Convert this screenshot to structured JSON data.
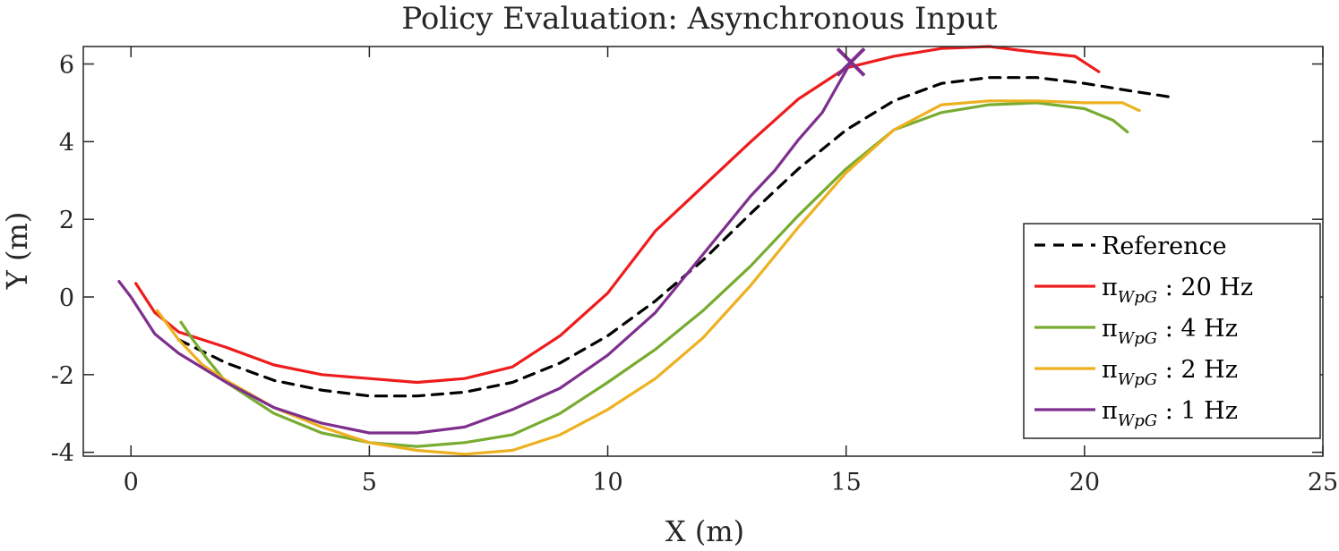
{
  "chart_data": {
    "type": "line",
    "title": "Policy Evaluation: Asynchronous Input",
    "xlabel": "X (m)",
    "ylabel": "Y (m)",
    "xlim": [
      -1,
      25
    ],
    "ylim": [
      -4.1,
      6.45
    ],
    "xticks": [
      0,
      5,
      10,
      15,
      20,
      25
    ],
    "yticks": [
      -4,
      -2,
      0,
      2,
      4,
      6
    ],
    "grid": false,
    "legend_position": "right",
    "series": [
      {
        "name": "Reference",
        "legend_main": "Reference",
        "color": "#000000",
        "dash": true,
        "x": [
          1.0,
          2.0,
          3.0,
          4.0,
          5.0,
          6.0,
          7.0,
          8.0,
          9.0,
          10.0,
          11.0,
          12.0,
          13.0,
          14.0,
          15.0,
          16.0,
          17.0,
          18.0,
          19.0,
          20.0,
          21.0,
          21.8
        ],
        "y": [
          -1.1,
          -1.7,
          -2.15,
          -2.4,
          -2.55,
          -2.55,
          -2.45,
          -2.2,
          -1.7,
          -1.0,
          -0.1,
          0.95,
          2.15,
          3.3,
          4.3,
          5.05,
          5.5,
          5.65,
          5.65,
          5.5,
          5.3,
          5.15
        ]
      },
      {
        "name": "π_{WpG} : 20 Hz",
        "legend_main": "π",
        "legend_sub": "WpG",
        "legend_suffix": " : 20 Hz",
        "color": "#ee1c1c",
        "dash": false,
        "x": [
          0.1,
          0.5,
          1.0,
          2.0,
          3.0,
          4.0,
          5.0,
          6.0,
          7.0,
          8.0,
          9.0,
          10.0,
          11.0,
          12.0,
          13.0,
          14.0,
          15.0,
          16.0,
          17.0,
          18.0,
          19.0,
          19.8,
          20.3
        ],
        "y": [
          0.35,
          -0.4,
          -0.9,
          -1.3,
          -1.75,
          -2.0,
          -2.1,
          -2.2,
          -2.1,
          -1.8,
          -1.0,
          0.1,
          1.7,
          2.85,
          4.0,
          5.1,
          5.9,
          6.2,
          6.4,
          6.45,
          6.3,
          6.2,
          5.8
        ]
      },
      {
        "name": "π_{WpG} : 4 Hz",
        "legend_main": "π",
        "legend_sub": "WpG",
        "legend_suffix": " : 4 Hz",
        "color": "#77ac30",
        "dash": false,
        "x": [
          1.05,
          1.3,
          1.6,
          2.0,
          3.0,
          4.0,
          5.0,
          6.0,
          7.0,
          8.0,
          9.0,
          10.0,
          11.0,
          12.0,
          13.0,
          14.0,
          15.0,
          16.0,
          17.0,
          18.0,
          19.0,
          20.0,
          20.6,
          20.9
        ],
        "y": [
          -0.65,
          -1.1,
          -1.6,
          -2.2,
          -3.0,
          -3.5,
          -3.75,
          -3.85,
          -3.75,
          -3.55,
          -3.0,
          -2.2,
          -1.35,
          -0.35,
          0.8,
          2.1,
          3.3,
          4.3,
          4.75,
          4.95,
          5.0,
          4.85,
          4.55,
          4.25
        ]
      },
      {
        "name": "π_{WpG} : 2 Hz",
        "legend_main": "π",
        "legend_sub": "WpG",
        "legend_suffix": " : 2 Hz",
        "color": "#edb120",
        "dash": false,
        "x": [
          0.55,
          1.0,
          1.5,
          2.0,
          3.0,
          4.0,
          5.0,
          6.0,
          7.0,
          8.0,
          9.0,
          10.0,
          11.0,
          12.0,
          13.0,
          14.0,
          15.0,
          16.0,
          17.0,
          18.0,
          19.0,
          20.0,
          20.8,
          21.15
        ],
        "y": [
          -0.35,
          -1.1,
          -1.75,
          -2.15,
          -2.85,
          -3.35,
          -3.75,
          -3.95,
          -4.05,
          -3.95,
          -3.55,
          -2.9,
          -2.1,
          -1.05,
          0.3,
          1.8,
          3.2,
          4.3,
          4.95,
          5.05,
          5.05,
          5.0,
          5.0,
          4.8
        ]
      },
      {
        "name": "π_{WpG} : 1 Hz",
        "legend_main": "π",
        "legend_sub": "WpG",
        "legend_suffix": " : 1 Hz",
        "color": "#7e2f8e",
        "dash": false,
        "x": [
          -0.25,
          0.0,
          0.5,
          1.0,
          2.0,
          3.0,
          4.0,
          5.0,
          6.0,
          7.0,
          8.0,
          9.0,
          10.0,
          11.0,
          12.0,
          13.0,
          13.5,
          14.0,
          14.5,
          14.8,
          15.1
        ],
        "y": [
          0.4,
          0.0,
          -0.95,
          -1.45,
          -2.2,
          -2.85,
          -3.25,
          -3.5,
          -3.5,
          -3.35,
          -2.9,
          -2.35,
          -1.5,
          -0.4,
          1.1,
          2.6,
          3.25,
          4.05,
          4.75,
          5.4,
          6.05
        ]
      }
    ],
    "end_marker": {
      "series": "π_{WpG} : 1 Hz",
      "x": 15.1,
      "y": 6.05,
      "symbol": "x",
      "color": "#7e2f8e"
    }
  }
}
